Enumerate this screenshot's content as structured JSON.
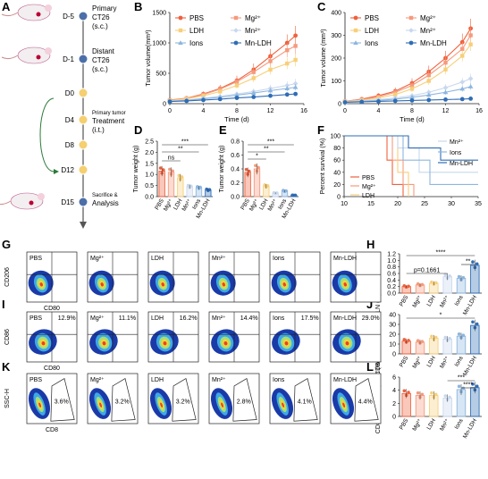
{
  "panel_labels": [
    "A",
    "B",
    "C",
    "D",
    "E",
    "F",
    "G",
    "H",
    "I",
    "J",
    "K",
    "L"
  ],
  "timeline": {
    "days": [
      "D-5",
      "D-1",
      "D0",
      "D4",
      "D8",
      "D12",
      "D15"
    ],
    "events": [
      {
        "day": "D-5",
        "text": [
          "Primary",
          "CT26",
          "(s.c.)"
        ]
      },
      {
        "day": "D-1",
        "text": [
          "Distant",
          "CT26",
          "(s.c.)"
        ]
      },
      {
        "day": "D4",
        "text": [
          "Primary tumor",
          "Treatment",
          "(i.t.)"
        ]
      },
      {
        "day": "D15",
        "text": [
          "Sacrifice &",
          "Analysis"
        ]
      }
    ]
  },
  "groups": [
    "PBS",
    "Mg²⁺",
    "LDH",
    "Mn²⁺",
    "Ions",
    "Mn-LDH"
  ],
  "colors": {
    "PBS": "#f0603c",
    "Mg": "#f59a7d",
    "LDH": "#f7cf7a",
    "Mn": "#c8d8ee",
    "Ions": "#8cb6e0",
    "MnLDH": "#2f6db5"
  },
  "chart_data": [
    {
      "type": "line",
      "title": "",
      "xlabel": "Time (d)",
      "ylabel": "Tumor volume(mm³)",
      "x": [
        0,
        2,
        4,
        6,
        8,
        10,
        12,
        14,
        15
      ],
      "xlim": [
        0,
        16
      ],
      "ylim": [
        0,
        1500
      ],
      "xticks": [
        "0",
        "4",
        "8",
        "12",
        "16"
      ],
      "yticks": [
        "0",
        "500",
        "1000",
        "1500"
      ],
      "series": [
        {
          "name": "PBS",
          "values": [
            60,
            90,
            160,
            250,
            380,
            560,
            780,
            1000,
            1120
          ]
        },
        {
          "name": "Mg²⁺",
          "values": [
            55,
            85,
            150,
            240,
            360,
            520,
            700,
            880,
            950
          ]
        },
        {
          "name": "LDH",
          "values": [
            50,
            80,
            130,
            200,
            300,
            420,
            560,
            660,
            720
          ]
        },
        {
          "name": "Mn²⁺",
          "values": [
            45,
            60,
            90,
            120,
            160,
            200,
            250,
            300,
            330
          ]
        },
        {
          "name": "Ions",
          "values": [
            40,
            55,
            80,
            105,
            140,
            175,
            215,
            250,
            270
          ]
        },
        {
          "name": "Mn-LDH",
          "values": [
            35,
            45,
            60,
            75,
            95,
            110,
            130,
            150,
            160
          ]
        }
      ]
    },
    {
      "type": "line",
      "title": "",
      "xlabel": "Time (d)",
      "ylabel": "Tumor volume (mm³)",
      "x": [
        0,
        2,
        4,
        6,
        8,
        10,
        12,
        14,
        15
      ],
      "xlim": [
        0,
        16
      ],
      "ylim": [
        0,
        400
      ],
      "xticks": [
        "0",
        "4",
        "8",
        "12",
        "16"
      ],
      "yticks": [
        "0",
        "100",
        "200",
        "300",
        "400"
      ],
      "series": [
        {
          "name": "PBS",
          "values": [
            10,
            20,
            35,
            55,
            90,
            140,
            200,
            270,
            330
          ]
        },
        {
          "name": "Mg²⁺",
          "values": [
            10,
            18,
            30,
            50,
            80,
            125,
            180,
            240,
            300
          ]
        },
        {
          "name": "LDH",
          "values": [
            9,
            15,
            25,
            40,
            65,
            100,
            150,
            210,
            260
          ]
        },
        {
          "name": "Mn²⁺",
          "values": [
            8,
            12,
            18,
            25,
            35,
            50,
            70,
            95,
            110
          ]
        },
        {
          "name": "Ions",
          "values": [
            7,
            10,
            14,
            20,
            28,
            38,
            50,
            65,
            75
          ]
        },
        {
          "name": "Mn-LDH",
          "values": [
            6,
            8,
            10,
            12,
            14,
            16,
            18,
            20,
            22
          ]
        }
      ]
    },
    {
      "type": "bar",
      "ylabel": "Tumor weight (g)",
      "ylim": [
        0,
        2.5
      ],
      "yticks": [
        "0.0",
        "0.5",
        "1.0",
        "1.5",
        "2.0",
        "2.5"
      ],
      "categories": [
        "PBS",
        "Mg²⁺",
        "LDH",
        "Mn²⁺",
        "Ions",
        "Mn-LDH"
      ],
      "values": [
        1.15,
        1.1,
        0.85,
        0.45,
        0.4,
        0.3
      ],
      "significance": [
        "***",
        "**",
        "ns"
      ]
    },
    {
      "type": "bar",
      "ylabel": "Tumor weight (g)",
      "ylim": [
        0,
        0.8
      ],
      "yticks": [
        "0.0",
        "0.2",
        "0.4",
        "0.6",
        "0.8"
      ],
      "categories": [
        "PBS",
        "Mg²⁺",
        "LDH",
        "Mn²⁺",
        "Ions",
        "Mn-LDH"
      ],
      "values": [
        0.35,
        0.4,
        0.15,
        0.05,
        0.08,
        0.02
      ],
      "significance": [
        "***",
        "**",
        "*"
      ]
    },
    {
      "type": "line",
      "ylabel": "Percent survival (%)",
      "xlabel": "",
      "xlim": [
        10,
        35
      ],
      "ylim": [
        0,
        100
      ],
      "xticks": [
        "10",
        "15",
        "20",
        "25",
        "30",
        "35"
      ],
      "yticks": [
        "0",
        "20",
        "40",
        "60",
        "80",
        "100"
      ],
      "series": [
        {
          "name": "PBS",
          "values": [
            [
              10,
              100
            ],
            [
              18,
              100
            ],
            [
              18,
              60
            ],
            [
              19,
              60
            ],
            [
              19,
              20
            ],
            [
              21,
              20
            ],
            [
              21,
              0
            ]
          ]
        },
        {
          "name": "Mg²⁺",
          "values": [
            [
              10,
              100
            ],
            [
              19,
              100
            ],
            [
              19,
              60
            ],
            [
              21,
              60
            ],
            [
              21,
              20
            ],
            [
              23,
              20
            ],
            [
              23,
              0
            ]
          ]
        },
        {
          "name": "LDH",
          "values": [
            [
              10,
              100
            ],
            [
              20,
              100
            ],
            [
              20,
              40
            ],
            [
              22,
              40
            ],
            [
              22,
              0
            ]
          ]
        },
        {
          "name": "Mn²⁺",
          "values": [
            [
              10,
              100
            ],
            [
              20,
              100
            ],
            [
              20,
              80
            ],
            [
              24,
              80
            ],
            [
              24,
              40
            ],
            [
              35,
              40
            ]
          ]
        },
        {
          "name": "Ions",
          "values": [
            [
              10,
              100
            ],
            [
              21,
              100
            ],
            [
              21,
              60
            ],
            [
              26,
              60
            ],
            [
              26,
              20
            ],
            [
              35,
              20
            ]
          ]
        },
        {
          "name": "Mn-LDH",
          "values": [
            [
              10,
              100
            ],
            [
              22,
              100
            ],
            [
              22,
              80
            ],
            [
              28,
              80
            ],
            [
              28,
              60
            ],
            [
              35,
              60
            ]
          ]
        }
      ]
    },
    {
      "type": "bar",
      "ylabel": "M1/M2 ratio",
      "ylim": [
        0,
        1.2
      ],
      "yticks": [
        "0.0",
        "0.2",
        "0.4",
        "0.6",
        "0.8",
        "1.0",
        "1.2"
      ],
      "categories": [
        "PBS",
        "Mg²⁺",
        "LDH",
        "Mn²⁺",
        "Ions",
        "Mn-LDH"
      ],
      "values": [
        0.2,
        0.25,
        0.3,
        0.5,
        0.45,
        0.85
      ],
      "significance": [
        "****",
        "**",
        "p=0.1661"
      ]
    },
    {
      "type": "bar",
      "ylabel": "CD80⁺ CD86⁺ DCs in LN (%)",
      "ylim": [
        0,
        40
      ],
      "yticks": [
        "0",
        "10",
        "20",
        "30",
        "40"
      ],
      "categories": [
        "PBS",
        "Mg²⁺",
        "LDH",
        "Mn²⁺",
        "Ions",
        "Mn-LDH"
      ],
      "values": [
        13,
        12,
        16,
        15,
        18,
        29
      ],
      "significance": [
        "*"
      ]
    },
    {
      "type": "bar",
      "ylabel": "CD8⁺ T cells in spleen (%)",
      "ylim": [
        0,
        6
      ],
      "yticks": [
        "0",
        "2",
        "4",
        "6"
      ],
      "categories": [
        "PBS",
        "Mg²⁺",
        "LDH",
        "Mn²⁺",
        "Ions",
        "Mn-LDH"
      ],
      "values": [
        3.5,
        3.2,
        3.2,
        2.8,
        4.1,
        4.4
      ],
      "significance": [
        "***",
        "****"
      ]
    }
  ],
  "flow": {
    "G": {
      "xlabel": "CD80",
      "ylabel": "CD206",
      "groups": [
        "PBS",
        "Mg²⁺",
        "LDH",
        "Mn²⁺",
        "Ions",
        "Mn-LDH"
      ]
    },
    "I": {
      "xlabel": "CD80",
      "ylabel": "CD86",
      "groups": [
        "PBS",
        "Mg²⁺",
        "LDH",
        "Mn²⁺",
        "Ions",
        "Mn-LDH"
      ],
      "percents": [
        "12.9%",
        "11.1%",
        "16.2%",
        "14.4%",
        "17.5%",
        "29.0%"
      ]
    },
    "K": {
      "xlabel": "CD8",
      "ylabel": "SSC-H",
      "groups": [
        "PBS",
        "Mg²⁺",
        "LDH",
        "Mn²⁺",
        "Ions",
        "Mn-LDH"
      ],
      "percents": [
        "3.6%",
        "3.2%",
        "3.2%",
        "2.8%",
        "4.1%",
        "4.4%"
      ]
    }
  }
}
